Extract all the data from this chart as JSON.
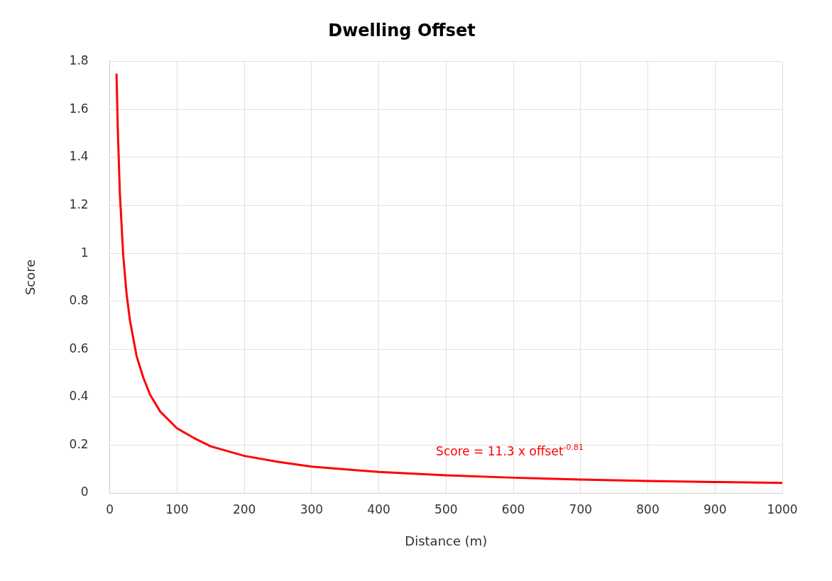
{
  "chart_data": {
    "type": "line",
    "title": "Dwelling Offset",
    "xlabel": "Distance (m)",
    "ylabel": "Score",
    "x": [
      10,
      12,
      15,
      20,
      25,
      30,
      40,
      50,
      60,
      75,
      100,
      125,
      150,
      200,
      250,
      300,
      400,
      500,
      600,
      700,
      800,
      900,
      1000
    ],
    "series": [
      {
        "color": "#ff0000",
        "values": [
          1.75,
          1.51,
          1.25,
          0.99,
          0.83,
          0.72,
          0.57,
          0.48,
          0.41,
          0.34,
          0.27,
          0.23,
          0.195,
          0.155,
          0.13,
          0.11,
          0.088,
          0.074,
          0.064,
          0.056,
          0.05,
          0.046,
          0.042
        ]
      }
    ],
    "xlim": [
      0,
      1000
    ],
    "xticks": [
      0,
      100,
      200,
      300,
      400,
      500,
      600,
      700,
      800,
      900,
      1000
    ],
    "ylim": [
      0,
      1.8
    ],
    "yticks": [
      0,
      {
        "value": 0.2,
        "label": "0.2"
      },
      {
        "value": 0.4,
        "label": "0.4"
      },
      {
        "value": 0.6,
        "label": "0.6"
      },
      {
        "value": 0.8,
        "label": "0.8"
      },
      1,
      {
        "value": 1.2,
        "label": "1.2"
      },
      {
        "value": 1.4,
        "label": "1.4"
      },
      {
        "value": 1.6,
        "label": "1.6"
      },
      {
        "value": 1.8,
        "label": "1.8"
      }
    ],
    "annotations": [
      "Score = 11.3 x offset$^{-0.81}$"
    ],
    "grid": true,
    "legend": false,
    "marker": "none",
    "line_style": "solid"
  }
}
